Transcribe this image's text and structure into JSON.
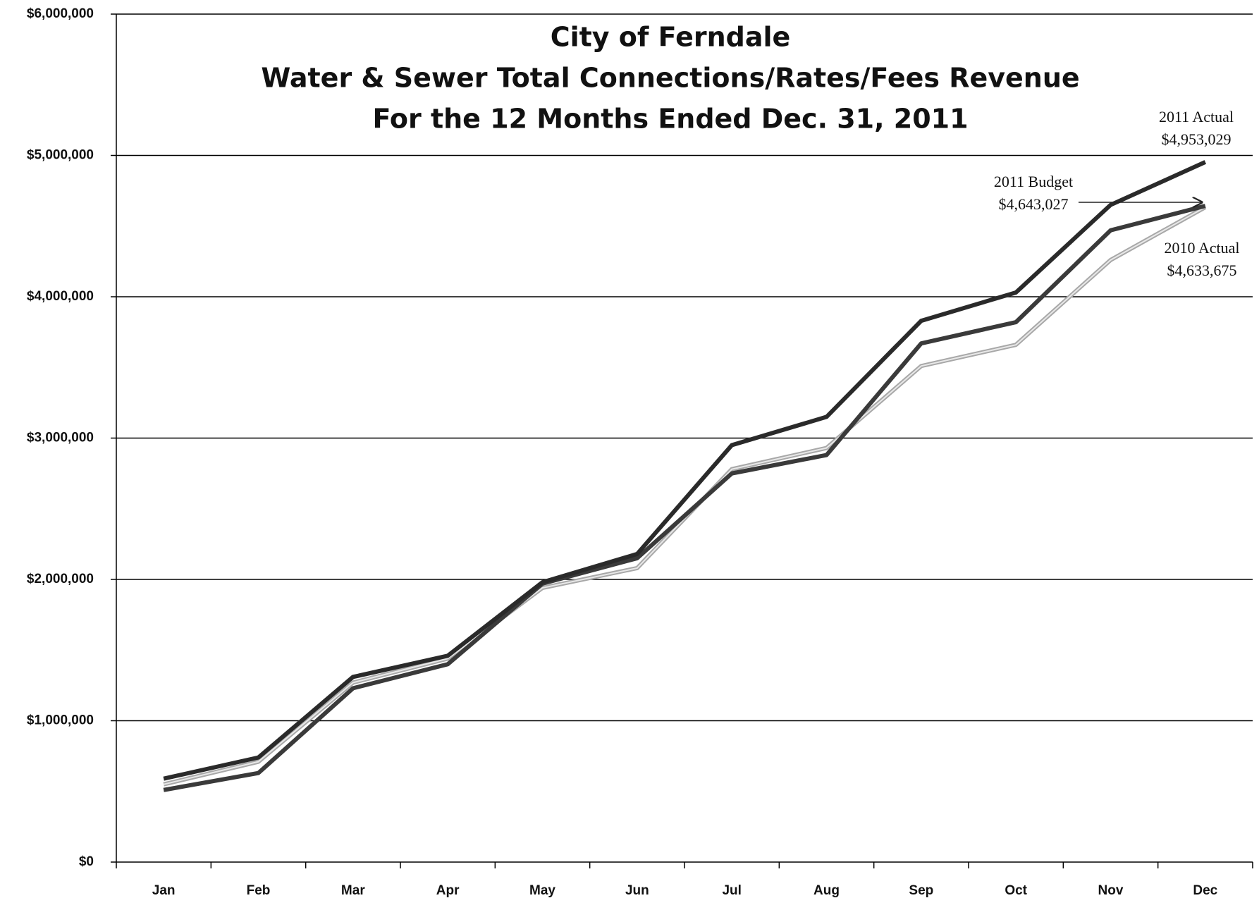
{
  "chart_data": {
    "type": "line",
    "title": [
      "City of Ferndale",
      "Water & Sewer Total Connections/Rates/Fees Revenue",
      "For the 12 Months Ended Dec. 31, 2011"
    ],
    "categories": [
      "Jan",
      "Feb",
      "Mar",
      "Apr",
      "May",
      "Jun",
      "Jul",
      "Aug",
      "Sep",
      "Oct",
      "Nov",
      "Dec"
    ],
    "series": [
      {
        "name": "2010 Actual",
        "color": "#a8a8a8",
        "values": [
          550000,
          710000,
          1270000,
          1440000,
          1940000,
          2080000,
          2780000,
          2930000,
          3510000,
          3660000,
          4260000,
          4633675
        ],
        "value_labels": [
          null,
          null,
          null,
          null,
          null,
          null,
          null,
          null,
          null,
          null,
          null,
          "$4,633,675"
        ]
      },
      {
        "name": "2011 Budget",
        "color": "#3a3a3a",
        "values": [
          510000,
          630000,
          1230000,
          1400000,
          1970000,
          2150000,
          2750000,
          2880000,
          3670000,
          3820000,
          4470000,
          4643027
        ],
        "value_labels": [
          null,
          null,
          null,
          null,
          null,
          null,
          null,
          null,
          null,
          null,
          null,
          "$4,643,027"
        ]
      },
      {
        "name": "2011 Actual",
        "color": "#2a2a2a",
        "values": [
          590000,
          740000,
          1310000,
          1460000,
          1980000,
          2180000,
          2950000,
          3150000,
          3830000,
          4030000,
          4650000,
          4953029
        ],
        "value_labels": [
          null,
          null,
          null,
          null,
          null,
          null,
          null,
          null,
          null,
          null,
          null,
          "$4,953,029"
        ]
      }
    ],
    "ylim": [
      0,
      6000000
    ],
    "yticks": [
      {
        "value": 0,
        "label": "$0"
      },
      {
        "value": 1000000,
        "label": "$1,000,000"
      },
      {
        "value": 2000000,
        "label": "$2,000,000"
      },
      {
        "value": 3000000,
        "label": "$3,000,000"
      },
      {
        "value": 4000000,
        "label": "$4,000,000"
      },
      {
        "value": 5000000,
        "label": "$5,000,000"
      },
      {
        "value": 6000000,
        "label": "$6,000,000"
      }
    ],
    "grid": true
  }
}
